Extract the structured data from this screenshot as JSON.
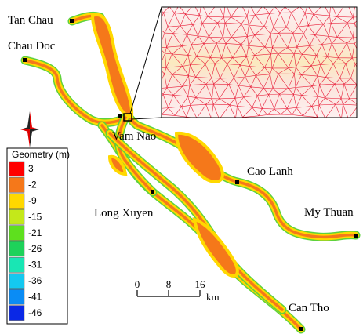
{
  "places": [
    "Tan Chau",
    "Chau Doc",
    "Vam Nao",
    "Cao Lanh",
    "Long Xuyen",
    "My Thuan",
    "Can Tho"
  ],
  "legend": {
    "title": "Geometry (m)",
    "items": [
      {
        "value": 3,
        "color": "#ff0000"
      },
      {
        "value": -2,
        "color": "#f5781a"
      },
      {
        "value": -9,
        "color": "#ffd800"
      },
      {
        "value": -15,
        "color": "#c4e81a"
      },
      {
        "value": -21,
        "color": "#5ee01e"
      },
      {
        "value": -26,
        "color": "#1ed25a"
      },
      {
        "value": -31,
        "color": "#19e6b4"
      },
      {
        "value": -36,
        "color": "#14c8f0"
      },
      {
        "value": -41,
        "color": "#0a8cf5"
      },
      {
        "value": -46,
        "color": "#0a28e6"
      }
    ]
  },
  "scale": {
    "ticks": [
      0,
      8,
      16
    ],
    "unit": "km"
  }
}
